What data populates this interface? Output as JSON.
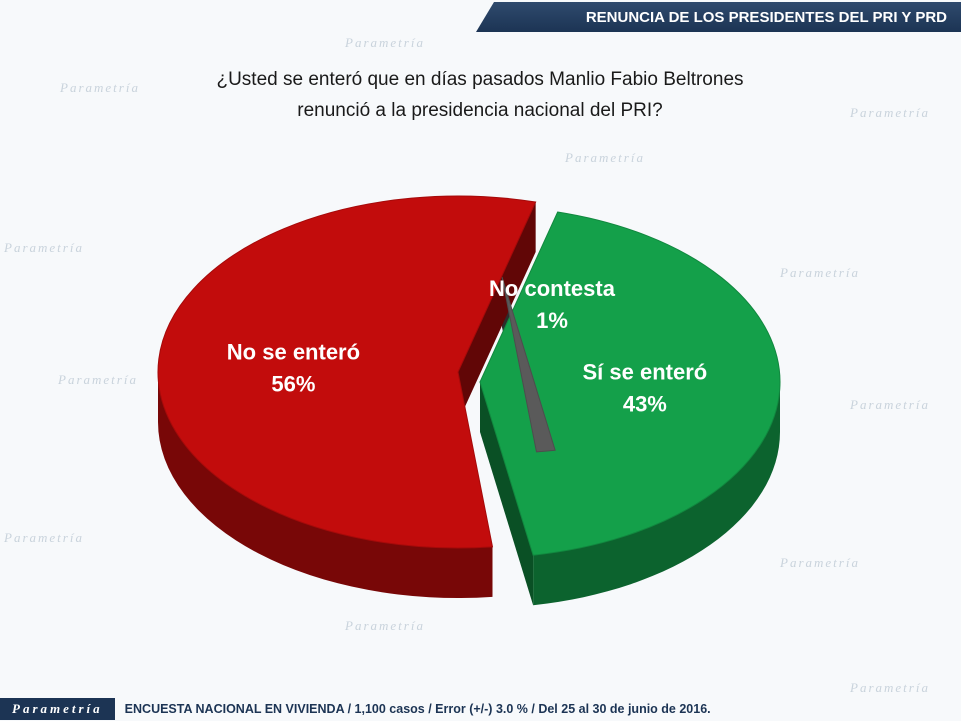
{
  "header": {
    "title": "RENUNCIA DE LOS PRESIDENTES DEL PRI Y PRD"
  },
  "question": {
    "line1": "¿Usted se enteró que en días pasados Manlio Fabio Beltrones",
    "line2": "renunció a la presidencia nacional del PRI?"
  },
  "watermark_text": "Parametría",
  "chart_data": {
    "type": "pie",
    "title": "",
    "slices": [
      {
        "label": "Sí se enteró",
        "value": 43,
        "display": "43%",
        "color": "#14a04a"
      },
      {
        "label": "No contesta",
        "value": 1,
        "display": "1%",
        "color": "#5a5a5a"
      },
      {
        "label": "No se enteró",
        "value": 56,
        "display": "56%",
        "color": "#c20c0c"
      }
    ]
  },
  "footer": {
    "logo": "Parametría",
    "text": "ENCUESTA NACIONAL EN VIVIENDA / 1,100 casos / Error (+/-) 3.0 % / Del 25 al 30 de junio de 2016."
  }
}
